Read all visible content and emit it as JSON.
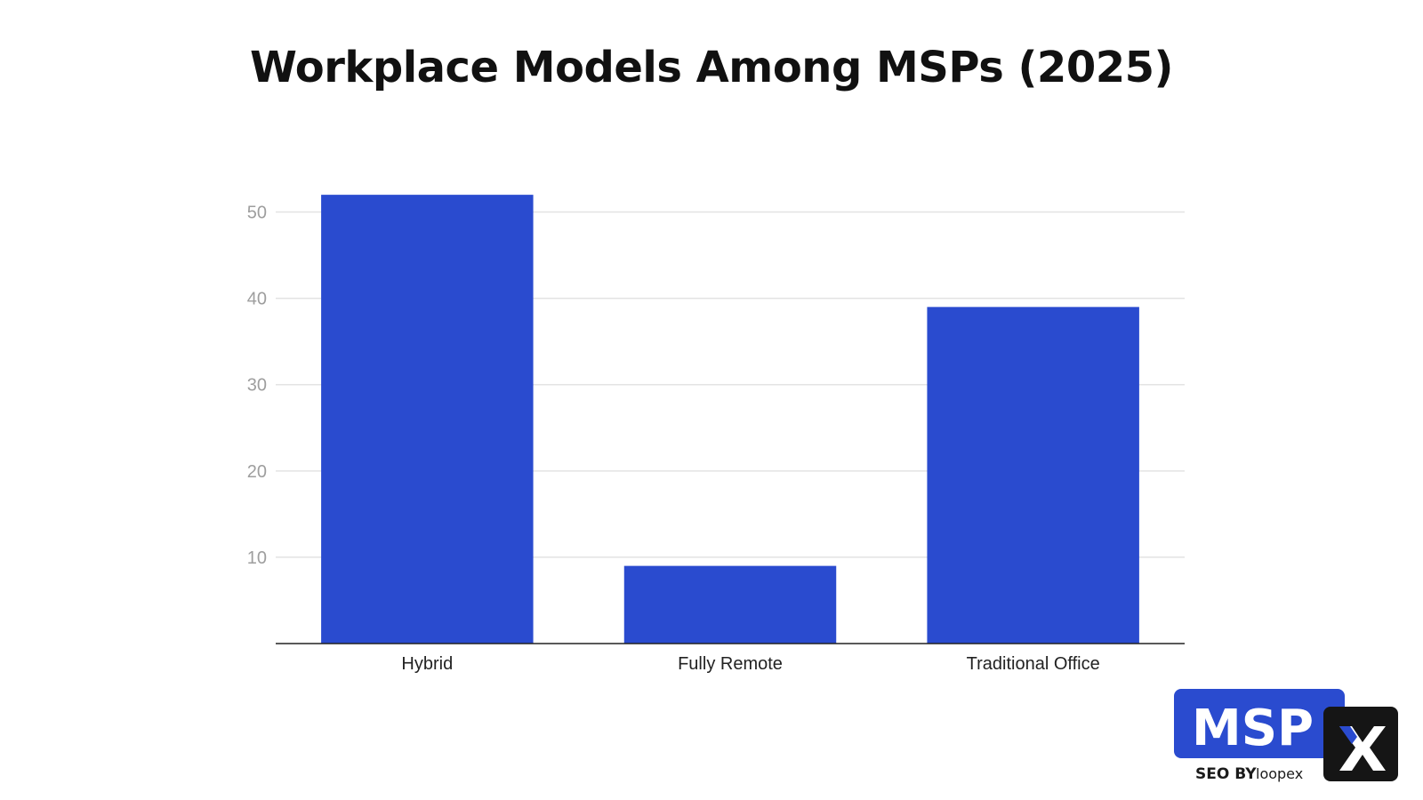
{
  "chart_data": {
    "type": "bar",
    "title": "Workplace Models Among MSPs (2025)",
    "categories": [
      "Hybrid",
      "Fully Remote",
      "Traditional Office"
    ],
    "values": [
      52,
      9,
      39
    ],
    "xlabel": "",
    "ylabel": "",
    "ylim": [
      0,
      55
    ],
    "yticks": [
      10,
      20,
      30,
      40,
      50
    ],
    "grid": true,
    "legend": "none",
    "bar_color": "#2a4bcf"
  },
  "logo": {
    "main": "MSP",
    "sub_prefix": "SEO BY",
    "brand": "loopex",
    "accent": "#2a4bcf"
  }
}
